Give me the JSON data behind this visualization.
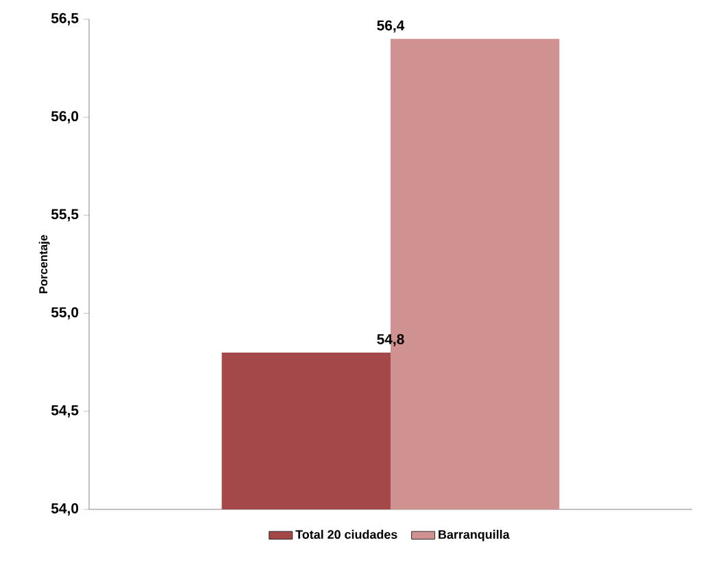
{
  "chart_data": {
    "type": "bar",
    "ylabel": "Porcentaje",
    "categories": [
      null
    ],
    "series": [
      {
        "name": "Total 20 ciudades",
        "color": "#a5484a",
        "values": [
          54.8
        ],
        "value_labels": [
          "54,8"
        ]
      },
      {
        "name": "Barranquilla",
        "color": "#d09291",
        "values": [
          56.4
        ],
        "value_labels": [
          "56,4"
        ]
      }
    ],
    "ylim": [
      54.0,
      56.5
    ],
    "yticks": [
      {
        "value": 54.0,
        "label": "54,0"
      },
      {
        "value": 54.5,
        "label": "54,5"
      },
      {
        "value": 55.0,
        "label": "55,0"
      },
      {
        "value": 55.5,
        "label": "55,5"
      },
      {
        "value": 56.0,
        "label": "56,0"
      },
      {
        "value": 56.5,
        "label": "56,5"
      }
    ],
    "legend": "bottom",
    "grid": false
  }
}
